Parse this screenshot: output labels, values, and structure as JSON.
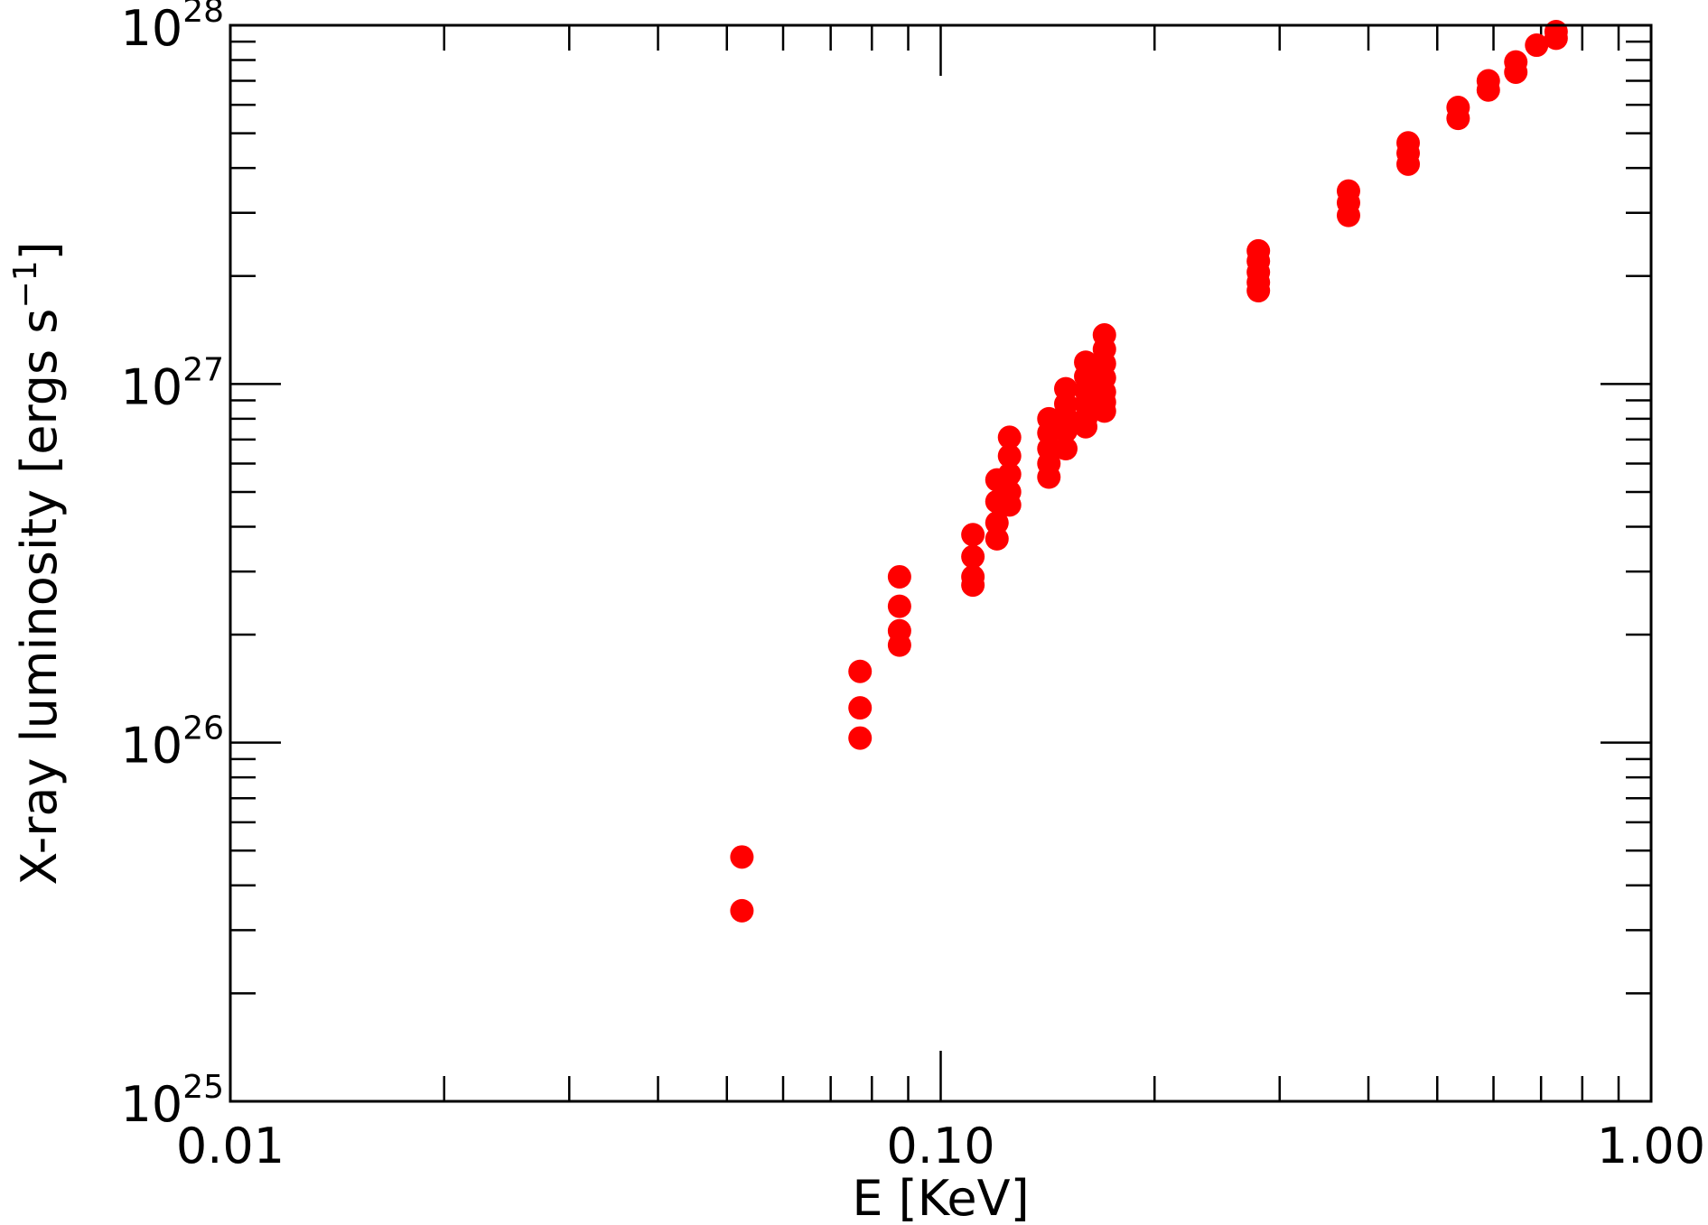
{
  "chart_data": {
    "type": "scatter",
    "title": "",
    "xlabel": "E [KeV]",
    "ylabel": "X-ray luminosity [ergs s",
    "ylabel_sup": "−1",
    "ylabel_end": "]",
    "xscale": "log",
    "yscale": "log",
    "xlim": [
      0.01,
      1.0
    ],
    "ylim": [
      1e+25,
      1e+28
    ],
    "grid": false,
    "legend": "none",
    "x_ticks": [
      {
        "value": 0.01,
        "label": "0.01"
      },
      {
        "value": 0.1,
        "label": "0.10"
      },
      {
        "value": 1.0,
        "label": "1.00"
      }
    ],
    "y_ticks": [
      {
        "value": 1e+25,
        "base": "10",
        "exp": "25"
      },
      {
        "value": 1e+26,
        "base": "10",
        "exp": "26"
      },
      {
        "value": 1e+27,
        "base": "10",
        "exp": "27"
      },
      {
        "value": 1e+28,
        "base": "10",
        "exp": "28"
      }
    ],
    "marker_color": "#ff0000",
    "series": [
      {
        "points": [
          [
            0.0525,
            4.8e+25
          ],
          [
            0.0525,
            3.4e+25
          ],
          [
            0.077,
            1.58e+26
          ],
          [
            0.077,
            1.25e+26
          ],
          [
            0.077,
            1.03e+26
          ],
          [
            0.0875,
            2.9e+26
          ],
          [
            0.0875,
            2.4e+26
          ],
          [
            0.0875,
            2.05e+26
          ],
          [
            0.0875,
            1.87e+26
          ],
          [
            0.111,
            3.8e+26
          ],
          [
            0.111,
            3.3e+26
          ],
          [
            0.111,
            2.9e+26
          ],
          [
            0.111,
            2.75e+26
          ],
          [
            0.12,
            5.4e+26
          ],
          [
            0.12,
            4.7e+26
          ],
          [
            0.12,
            4.1e+26
          ],
          [
            0.12,
            3.7e+26
          ],
          [
            0.125,
            7.1e+26
          ],
          [
            0.125,
            6.3e+26
          ],
          [
            0.125,
            5.6e+26
          ],
          [
            0.125,
            5e+26
          ],
          [
            0.125,
            4.6e+26
          ],
          [
            0.142,
            8e+26
          ],
          [
            0.142,
            7.3e+26
          ],
          [
            0.142,
            6.6e+26
          ],
          [
            0.142,
            6e+26
          ],
          [
            0.142,
            5.5e+26
          ],
          [
            0.15,
            9.7e+26
          ],
          [
            0.15,
            8.8e+26
          ],
          [
            0.15,
            8.1e+26
          ],
          [
            0.15,
            7.4e+26
          ],
          [
            0.15,
            6.6e+26
          ],
          [
            0.16,
            1.15e+27
          ],
          [
            0.16,
            1.05e+27
          ],
          [
            0.16,
            9.6e+26
          ],
          [
            0.16,
            8.8e+26
          ],
          [
            0.16,
            8e+26
          ],
          [
            0.16,
            7.6e+26
          ],
          [
            0.17,
            1.37e+27
          ],
          [
            0.17,
            1.25e+27
          ],
          [
            0.17,
            1.14e+27
          ],
          [
            0.17,
            1.04e+27
          ],
          [
            0.17,
            9.5e+26
          ],
          [
            0.17,
            8.9e+26
          ],
          [
            0.17,
            8.4e+26
          ],
          [
            0.28,
            2.35e+27
          ],
          [
            0.28,
            2.2e+27
          ],
          [
            0.28,
            2.05e+27
          ],
          [
            0.28,
            1.92e+27
          ],
          [
            0.28,
            1.82e+27
          ],
          [
            0.375,
            3.45e+27
          ],
          [
            0.375,
            3.2e+27
          ],
          [
            0.375,
            2.95e+27
          ],
          [
            0.455,
            4.7e+27
          ],
          [
            0.455,
            4.4e+27
          ],
          [
            0.455,
            4.1e+27
          ],
          [
            0.535,
            5.9e+27
          ],
          [
            0.535,
            5.5e+27
          ],
          [
            0.59,
            7e+27
          ],
          [
            0.59,
            6.6e+27
          ],
          [
            0.645,
            7.9e+27
          ],
          [
            0.645,
            7.4e+27
          ],
          [
            0.69,
            8.8e+27
          ],
          [
            0.735,
            9.6e+27
          ],
          [
            0.735,
            9.2e+27
          ]
        ]
      }
    ]
  }
}
